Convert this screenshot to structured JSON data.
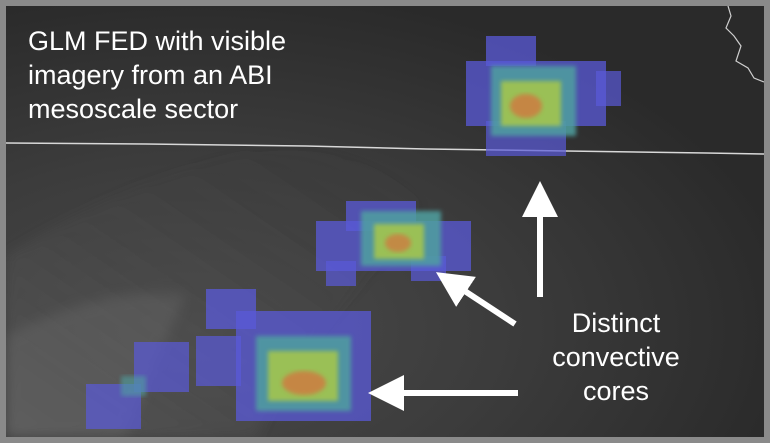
{
  "caption": {
    "lines": [
      "GLM FED with visible",
      "imagery from an ABI",
      "mesoscale sector"
    ]
  },
  "annotation": {
    "lines": [
      "Distinct",
      "convective",
      "cores"
    ]
  },
  "colors": {
    "fed_low": "#5a5ad8",
    "fed_mid": "#4fa0a0",
    "fed_high": "#a8c84a",
    "fed_peak": "#d07840",
    "arrow": "#ffffff",
    "border_line": "#d8d8d8",
    "background": "#3a3a3a"
  }
}
